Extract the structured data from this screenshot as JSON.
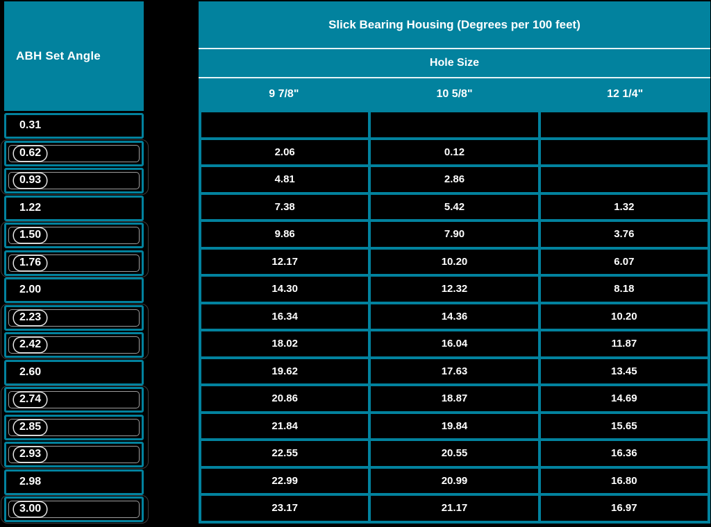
{
  "colors": {
    "background": "#000000",
    "teal": "#02829e",
    "divider": "#e6f3f6",
    "text": "#ffffff",
    "link_outline": "#e8e8e8",
    "group_outline": "#3e3e3e"
  },
  "left_table": {
    "header": "ABH Set Angle",
    "rows": [
      {
        "value": "0.31",
        "linked": false
      },
      {
        "value": "0.62",
        "linked": true
      },
      {
        "value": "0.93",
        "linked": true
      },
      {
        "value": "1.22",
        "linked": false
      },
      {
        "value": "1.50",
        "linked": true
      },
      {
        "value": "1.76",
        "linked": true
      },
      {
        "value": "2.00",
        "linked": false
      },
      {
        "value": "2.23",
        "linked": true
      },
      {
        "value": "2.42",
        "linked": true
      },
      {
        "value": "2.60",
        "linked": false
      },
      {
        "value": "2.74",
        "linked": true
      },
      {
        "value": "2.85",
        "linked": true
      },
      {
        "value": "2.93",
        "linked": true
      },
      {
        "value": "2.98",
        "linked": false
      },
      {
        "value": "3.00",
        "linked": true
      }
    ]
  },
  "right_table": {
    "title": "Slick Bearing Housing (Degrees per 100 feet)",
    "group_header": "Hole Size",
    "columns": [
      "9 7/8\"",
      "10 5/8\"",
      "12 1/4\""
    ],
    "rows": [
      [
        "",
        "",
        ""
      ],
      [
        "2.06",
        "0.12",
        ""
      ],
      [
        "4.81",
        "2.86",
        ""
      ],
      [
        "7.38",
        "5.42",
        "1.32"
      ],
      [
        "9.86",
        "7.90",
        "3.76"
      ],
      [
        "12.17",
        "10.20",
        "6.07"
      ],
      [
        "14.30",
        "12.32",
        "8.18"
      ],
      [
        "16.34",
        "14.36",
        "10.20"
      ],
      [
        "18.02",
        "16.04",
        "11.87"
      ],
      [
        "19.62",
        "17.63",
        "13.45"
      ],
      [
        "20.86",
        "18.87",
        "14.69"
      ],
      [
        "21.84",
        "19.84",
        "15.65"
      ],
      [
        "22.55",
        "20.55",
        "16.36"
      ],
      [
        "22.99",
        "20.99",
        "16.80"
      ],
      [
        "23.17",
        "21.17",
        "16.97"
      ]
    ]
  },
  "chart_data": {
    "type": "table",
    "title": "Slick Bearing Housing (Degrees per 100 feet)",
    "row_header_label": "ABH Set Angle",
    "column_group_header": "Hole Size",
    "columns": [
      "ABH Set Angle",
      "9 7/8\"",
      "10 5/8\"",
      "12 1/4\""
    ],
    "rows": [
      [
        0.31,
        null,
        null,
        null
      ],
      [
        0.62,
        2.06,
        0.12,
        null
      ],
      [
        0.93,
        4.81,
        2.86,
        null
      ],
      [
        1.22,
        7.38,
        5.42,
        1.32
      ],
      [
        1.5,
        9.86,
        7.9,
        3.76
      ],
      [
        1.76,
        12.17,
        10.2,
        6.07
      ],
      [
        2.0,
        14.3,
        12.32,
        8.18
      ],
      [
        2.23,
        16.34,
        14.36,
        10.2
      ],
      [
        2.42,
        18.02,
        16.04,
        11.87
      ],
      [
        2.6,
        19.62,
        17.63,
        13.45
      ],
      [
        2.74,
        20.86,
        18.87,
        14.69
      ],
      [
        2.85,
        21.84,
        19.84,
        15.65
      ],
      [
        2.93,
        22.55,
        20.55,
        16.36
      ],
      [
        2.98,
        22.99,
        20.99,
        16.8
      ],
      [
        3.0,
        23.17,
        21.17,
        16.97
      ]
    ]
  }
}
